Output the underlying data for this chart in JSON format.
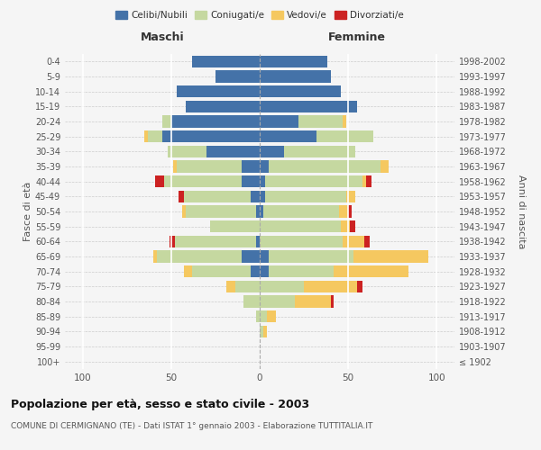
{
  "age_groups": [
    "100+",
    "95-99",
    "90-94",
    "85-89",
    "80-84",
    "75-79",
    "70-74",
    "65-69",
    "60-64",
    "55-59",
    "50-54",
    "45-49",
    "40-44",
    "35-39",
    "30-34",
    "25-29",
    "20-24",
    "15-19",
    "10-14",
    "5-9",
    "0-4"
  ],
  "birth_years": [
    "≤ 1902",
    "1903-1907",
    "1908-1912",
    "1913-1917",
    "1918-1922",
    "1923-1927",
    "1928-1932",
    "1933-1937",
    "1938-1942",
    "1943-1947",
    "1948-1952",
    "1953-1957",
    "1958-1962",
    "1963-1967",
    "1968-1972",
    "1973-1977",
    "1978-1982",
    "1983-1987",
    "1988-1992",
    "1993-1997",
    "1998-2002"
  ],
  "maschi": {
    "celibi": [
      0,
      0,
      0,
      0,
      0,
      0,
      5,
      10,
      2,
      0,
      2,
      5,
      10,
      10,
      30,
      55,
      50,
      42,
      47,
      25,
      38
    ],
    "coniugati": [
      0,
      0,
      0,
      2,
      9,
      14,
      33,
      48,
      46,
      28,
      40,
      38,
      44,
      37,
      22,
      8,
      5,
      0,
      0,
      0,
      0
    ],
    "vedovi": [
      0,
      0,
      0,
      0,
      0,
      5,
      5,
      2,
      0,
      0,
      2,
      0,
      0,
      2,
      0,
      2,
      0,
      0,
      0,
      0,
      0
    ],
    "divorziati": [
      0,
      0,
      0,
      0,
      0,
      0,
      0,
      0,
      3,
      0,
      0,
      3,
      5,
      0,
      0,
      0,
      0,
      0,
      0,
      0,
      0
    ]
  },
  "femmine": {
    "nubili": [
      0,
      0,
      0,
      0,
      0,
      0,
      5,
      5,
      0,
      0,
      2,
      3,
      3,
      5,
      14,
      32,
      22,
      55,
      46,
      40,
      38
    ],
    "coniugate": [
      0,
      0,
      2,
      4,
      20,
      25,
      37,
      48,
      47,
      46,
      43,
      46,
      55,
      63,
      40,
      32,
      25,
      0,
      0,
      0,
      0
    ],
    "vedove": [
      0,
      0,
      2,
      5,
      20,
      30,
      42,
      42,
      12,
      5,
      5,
      5,
      2,
      5,
      0,
      0,
      2,
      0,
      0,
      0,
      0
    ],
    "divorziate": [
      0,
      0,
      0,
      0,
      2,
      3,
      0,
      0,
      3,
      3,
      2,
      0,
      3,
      0,
      0,
      0,
      0,
      0,
      0,
      0,
      0
    ]
  },
  "colors": {
    "celibi": "#4472a8",
    "coniugati": "#c5d8a0",
    "vedovi": "#f5c860",
    "divorziati": "#cc2222"
  },
  "xlim": 110,
  "title": "Popolazione per età, sesso e stato civile - 2003",
  "subtitle": "COMUNE DI CERMIGNANO (TE) - Dati ISTAT 1° gennaio 2003 - Elaborazione TUTTITALIA.IT",
  "ylabel_left": "Fasce di età",
  "ylabel_right": "Anni di nascita",
  "xlabel_maschi": "Maschi",
  "xlabel_femmine": "Femmine",
  "legend_labels": [
    "Celibi/Nubili",
    "Coniugati/e",
    "Vedovi/e",
    "Divorziati/e"
  ],
  "background_color": "#f5f5f5",
  "bar_height": 0.8
}
